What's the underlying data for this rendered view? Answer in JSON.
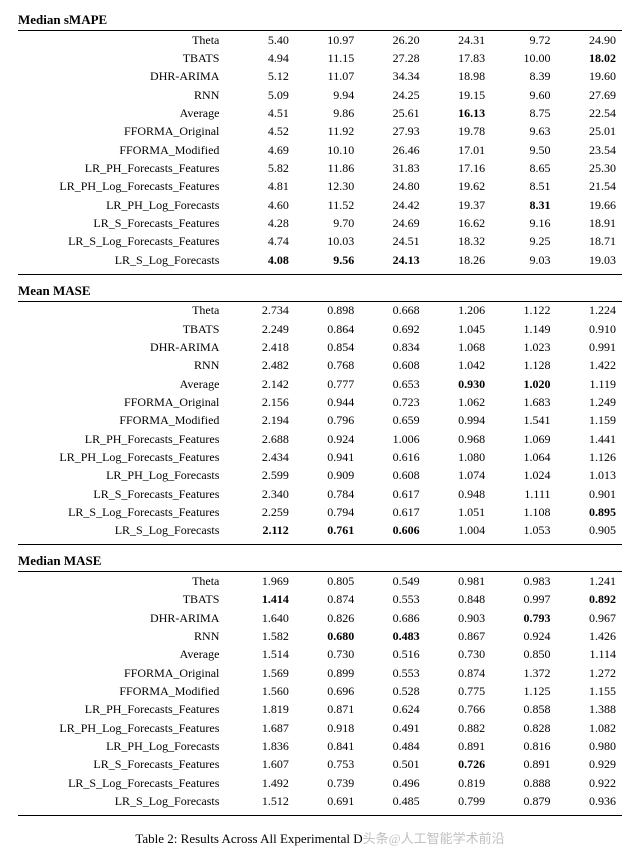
{
  "caption": "Table 2: Results Across All Experimental D",
  "watermark": "头条@人工智能学术前沿",
  "columns": [
    "c1",
    "c2",
    "c3",
    "c4",
    "c5",
    "c6"
  ],
  "label_col_width": 210,
  "val_col_width": 65,
  "font_family": "Times New Roman",
  "font_size_pt": 12,
  "text_color": "#000000",
  "background_color": "#ffffff",
  "watermark_color": "#bfbfbf",
  "sections": [
    {
      "title": "Median sMAPE",
      "row_labels": [
        "Theta",
        "TBATS",
        "DHR-ARIMA",
        "RNN",
        "Average",
        "FFORMA_Original",
        "FFORMA_Modified",
        "LR_PH_Forecasts_Features",
        "LR_PH_Log_Forecasts_Features",
        "LR_PH_Log_Forecasts",
        "LR_S_Forecasts_Features",
        "LR_S_Log_Forecasts_Features",
        "LR_S_Log_Forecasts"
      ],
      "values": [
        [
          "5.40",
          "10.97",
          "26.20",
          "24.31",
          "9.72",
          "24.90"
        ],
        [
          "4.94",
          "11.15",
          "27.28",
          "17.83",
          "10.00",
          "18.02"
        ],
        [
          "5.12",
          "11.07",
          "34.34",
          "18.98",
          "8.39",
          "19.60"
        ],
        [
          "5.09",
          "9.94",
          "24.25",
          "19.15",
          "9.60",
          "27.69"
        ],
        [
          "4.51",
          "9.86",
          "25.61",
          "16.13",
          "8.75",
          "22.54"
        ],
        [
          "4.52",
          "11.92",
          "27.93",
          "19.78",
          "9.63",
          "25.01"
        ],
        [
          "4.69",
          "10.10",
          "26.46",
          "17.01",
          "9.50",
          "23.54"
        ],
        [
          "5.82",
          "11.86",
          "31.83",
          "17.16",
          "8.65",
          "25.30"
        ],
        [
          "4.81",
          "12.30",
          "24.80",
          "19.62",
          "8.51",
          "21.54"
        ],
        [
          "4.60",
          "11.52",
          "24.42",
          "19.37",
          "8.31",
          "19.66"
        ],
        [
          "4.28",
          "9.70",
          "24.69",
          "16.62",
          "9.16",
          "18.91"
        ],
        [
          "4.74",
          "10.03",
          "24.51",
          "18.32",
          "9.25",
          "18.71"
        ],
        [
          "4.08",
          "9.56",
          "24.13",
          "18.26",
          "9.03",
          "19.03"
        ]
      ],
      "bold": {
        "1": [
          5
        ],
        "4": [
          3
        ],
        "9": [
          4
        ],
        "12": [
          0,
          1,
          2
        ]
      }
    },
    {
      "title": "Mean MASE",
      "row_labels": [
        "Theta",
        "TBATS",
        "DHR-ARIMA",
        "RNN",
        "Average",
        "FFORMA_Original",
        "FFORMA_Modified",
        "LR_PH_Forecasts_Features",
        "LR_PH_Log_Forecasts_Features",
        "LR_PH_Log_Forecasts",
        "LR_S_Forecasts_Features",
        "LR_S_Log_Forecasts_Features",
        "LR_S_Log_Forecasts"
      ],
      "values": [
        [
          "2.734",
          "0.898",
          "0.668",
          "1.206",
          "1.122",
          "1.224"
        ],
        [
          "2.249",
          "0.864",
          "0.692",
          "1.045",
          "1.149",
          "0.910"
        ],
        [
          "2.418",
          "0.854",
          "0.834",
          "1.068",
          "1.023",
          "0.991"
        ],
        [
          "2.482",
          "0.768",
          "0.608",
          "1.042",
          "1.128",
          "1.422"
        ],
        [
          "2.142",
          "0.777",
          "0.653",
          "0.930",
          "1.020",
          "1.119"
        ],
        [
          "2.156",
          "0.944",
          "0.723",
          "1.062",
          "1.683",
          "1.249"
        ],
        [
          "2.194",
          "0.796",
          "0.659",
          "0.994",
          "1.541",
          "1.159"
        ],
        [
          "2.688",
          "0.924",
          "1.006",
          "0.968",
          "1.069",
          "1.441"
        ],
        [
          "2.434",
          "0.941",
          "0.616",
          "1.080",
          "1.064",
          "1.126"
        ],
        [
          "2.599",
          "0.909",
          "0.608",
          "1.074",
          "1.024",
          "1.013"
        ],
        [
          "2.340",
          "0.784",
          "0.617",
          "0.948",
          "1.111",
          "0.901"
        ],
        [
          "2.259",
          "0.794",
          "0.617",
          "1.051",
          "1.108",
          "0.895"
        ],
        [
          "2.112",
          "0.761",
          "0.606",
          "1.004",
          "1.053",
          "0.905"
        ]
      ],
      "bold": {
        "4": [
          3,
          4
        ],
        "11": [
          5
        ],
        "12": [
          0,
          1,
          2
        ]
      }
    },
    {
      "title": "Median MASE",
      "row_labels": [
        "Theta",
        "TBATS",
        "DHR-ARIMA",
        "RNN",
        "Average",
        "FFORMA_Original",
        "FFORMA_Modified",
        "LR_PH_Forecasts_Features",
        "LR_PH_Log_Forecasts_Features",
        "LR_PH_Log_Forecasts",
        "LR_S_Forecasts_Features",
        "LR_S_Log_Forecasts_Features",
        "LR_S_Log_Forecasts"
      ],
      "values": [
        [
          "1.969",
          "0.805",
          "0.549",
          "0.981",
          "0.983",
          "1.241"
        ],
        [
          "1.414",
          "0.874",
          "0.553",
          "0.848",
          "0.997",
          "0.892"
        ],
        [
          "1.640",
          "0.826",
          "0.686",
          "0.903",
          "0.793",
          "0.967"
        ],
        [
          "1.582",
          "0.680",
          "0.483",
          "0.867",
          "0.924",
          "1.426"
        ],
        [
          "1.514",
          "0.730",
          "0.516",
          "0.730",
          "0.850",
          "1.114"
        ],
        [
          "1.569",
          "0.899",
          "0.553",
          "0.874",
          "1.372",
          "1.272"
        ],
        [
          "1.560",
          "0.696",
          "0.528",
          "0.775",
          "1.125",
          "1.155"
        ],
        [
          "1.819",
          "0.871",
          "0.624",
          "0.766",
          "0.858",
          "1.388"
        ],
        [
          "1.687",
          "0.918",
          "0.491",
          "0.882",
          "0.828",
          "1.082"
        ],
        [
          "1.836",
          "0.841",
          "0.484",
          "0.891",
          "0.816",
          "0.980"
        ],
        [
          "1.607",
          "0.753",
          "0.501",
          "0.726",
          "0.891",
          "0.929"
        ],
        [
          "1.492",
          "0.739",
          "0.496",
          "0.819",
          "0.888",
          "0.922"
        ],
        [
          "1.512",
          "0.691",
          "0.485",
          "0.799",
          "0.879",
          "0.936"
        ]
      ],
      "bold": {
        "1": [
          0,
          5
        ],
        "2": [
          4
        ],
        "3": [
          1,
          2
        ],
        "10": [
          3
        ]
      }
    }
  ]
}
